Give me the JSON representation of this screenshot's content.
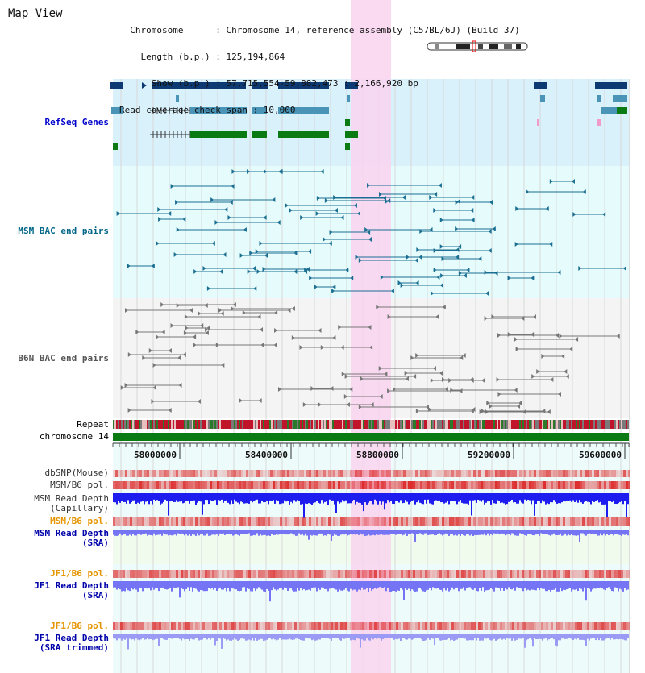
{
  "header": {
    "title": "Map View",
    "info_lines": [
      "  Chromosome      : Chromosome 14, reference assembly (C57BL/6J) (Build 37)",
      "    Length (b.p.) : 125,194,864",
      "      Show (b.p.) : 57,715,554-59,882,473 : 2,166,920 bp",
      "Read coverage check span : 10,000"
    ]
  },
  "ruler": {
    "ticks": [
      "58000000",
      "58400000",
      "58800000",
      "59200000",
      "59600000"
    ]
  },
  "tracks": {
    "refseq": {
      "label": "RefSeq Genes",
      "color": "#0000cc"
    },
    "msm_bac": {
      "label": "MSM BAC end pairs",
      "color": "#006688"
    },
    "b6n_bac": {
      "label": "B6N BAC end pairs",
      "color": "#555555"
    },
    "repeat": {
      "label": "Repeat",
      "color": "#000000"
    },
    "chromosome": {
      "label": "chromosome 14",
      "color": "#000000"
    },
    "dbsnp": {
      "label": "dbSNP(Mouse)",
      "color": "#333333"
    },
    "msm_b6_pol_cap": {
      "label": "MSM/B6 pol.",
      "color": "#333333"
    },
    "msm_depth_cap": {
      "label_1": "MSM Read Depth",
      "label_2": "(Capillary)",
      "color": "#333333"
    },
    "msm_b6_pol_sra": {
      "label": "MSM/B6 pol.",
      "color": "#e69500"
    },
    "msm_depth_sra": {
      "label_1": "MSM Read Depth",
      "label_2": "(SRA)",
      "color": "#0000aa"
    },
    "jf1_b6_pol": {
      "label": "JF1/B6 pol.",
      "color": "#e69500"
    },
    "jf1_depth_sra": {
      "label_1": "JF1 Read Depth",
      "label_2": "(SRA)",
      "color": "#0000aa"
    },
    "jf1_b6_pol_trim": {
      "label": "JF1/B6 pol.",
      "color": "#e69500"
    },
    "jf1_depth_trim": {
      "label_1": "JF1 Read Depth",
      "label_2": "(SRA trimmed)",
      "color": "#0000aa"
    }
  },
  "colors": {
    "highlight": "#f9d3ef",
    "refseq_bg": "#d9f1fb",
    "msm_bg": "#e6fbfb",
    "b6n_bg": "#f4f4f4",
    "gene_dark": "#0e3a73",
    "gene_mid": "#4a94b8",
    "gene_green": "#0a7a12",
    "chromosome_bar": "#0a7a12",
    "depth_dark": "#1d1df0",
    "depth_light": "#7474f4"
  }
}
